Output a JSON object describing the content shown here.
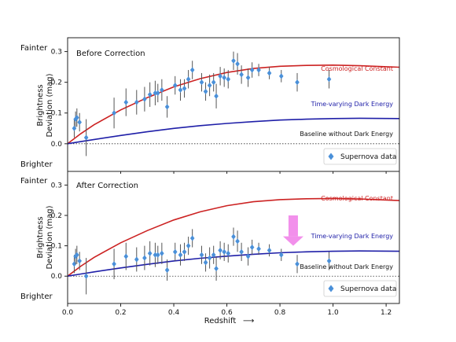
{
  "chart_data": {
    "type": "scatter",
    "xlabel": "Redshift",
    "xlabel_arrow": "⟶",
    "ylabel_line1": "Brightness",
    "ylabel_line2": "Deviation (mag)",
    "xlim": [
      0,
      1.25
    ],
    "ylim": [
      -0.09,
      0.345
    ],
    "xticks": [
      "0.0",
      "0.2",
      "0.4",
      "0.6",
      "0.8",
      "1.0",
      "1.2"
    ],
    "xtick_values": [
      0,
      0.2,
      0.4,
      0.6,
      0.8,
      1.0,
      1.2
    ],
    "yticks": [
      "0.0",
      "0.1",
      "0.2",
      "0.3"
    ],
    "ytick_values": [
      0,
      0.1,
      0.2,
      0.3
    ],
    "side_labels": {
      "top": "Fainter",
      "bottom": "Brighter"
    },
    "colors": {
      "cosmological": "#cc2222",
      "dark_energy": "#1f1fa8",
      "points": "#4a90d9",
      "errorbars": "#555555",
      "arrow": "#f07de8"
    },
    "curve_labels": {
      "cosmological": "Cosmological Constant",
      "dark_energy": "Time-varying Dark Energy",
      "baseline": "Baseline without Dark Energy"
    },
    "legend_label": "Supernova data",
    "panels": [
      {
        "title": "Before Correction",
        "cosmological_curve": {
          "x": [
            0,
            0.05,
            0.1,
            0.2,
            0.3,
            0.4,
            0.5,
            0.6,
            0.7,
            0.8,
            0.9,
            1.0,
            1.1,
            1.25
          ],
          "y": [
            0,
            0.033,
            0.062,
            0.11,
            0.15,
            0.185,
            0.212,
            0.232,
            0.245,
            0.252,
            0.255,
            0.256,
            0.254,
            0.249
          ]
        },
        "dark_energy_curve": {
          "x": [
            0,
            0.05,
            0.1,
            0.2,
            0.3,
            0.4,
            0.5,
            0.6,
            0.7,
            0.8,
            0.9,
            1.0,
            1.1,
            1.25
          ],
          "y": [
            0,
            0.007,
            0.014,
            0.027,
            0.039,
            0.05,
            0.059,
            0.066,
            0.072,
            0.077,
            0.08,
            0.082,
            0.083,
            0.082
          ]
        },
        "points": [
          {
            "x": 0.025,
            "y": 0.05,
            "err": 0.03
          },
          {
            "x": 0.03,
            "y": 0.08,
            "err": 0.025
          },
          {
            "x": 0.035,
            "y": 0.085,
            "err": 0.03
          },
          {
            "x": 0.045,
            "y": 0.07,
            "err": 0.03
          },
          {
            "x": 0.07,
            "y": 0.02,
            "err": 0.06
          },
          {
            "x": 0.175,
            "y": 0.1,
            "err": 0.05
          },
          {
            "x": 0.22,
            "y": 0.135,
            "err": 0.045
          },
          {
            "x": 0.26,
            "y": 0.135,
            "err": 0.04
          },
          {
            "x": 0.29,
            "y": 0.145,
            "err": 0.04
          },
          {
            "x": 0.31,
            "y": 0.16,
            "err": 0.04
          },
          {
            "x": 0.33,
            "y": 0.165,
            "err": 0.04
          },
          {
            "x": 0.34,
            "y": 0.165,
            "err": 0.03
          },
          {
            "x": 0.355,
            "y": 0.175,
            "err": 0.035
          },
          {
            "x": 0.375,
            "y": 0.12,
            "err": 0.035
          },
          {
            "x": 0.405,
            "y": 0.19,
            "err": 0.03
          },
          {
            "x": 0.425,
            "y": 0.175,
            "err": 0.035
          },
          {
            "x": 0.44,
            "y": 0.18,
            "err": 0.03
          },
          {
            "x": 0.455,
            "y": 0.21,
            "err": 0.03
          },
          {
            "x": 0.47,
            "y": 0.24,
            "err": 0.03
          },
          {
            "x": 0.505,
            "y": 0.2,
            "err": 0.03
          },
          {
            "x": 0.52,
            "y": 0.17,
            "err": 0.03
          },
          {
            "x": 0.535,
            "y": 0.19,
            "err": 0.035
          },
          {
            "x": 0.55,
            "y": 0.2,
            "err": 0.03
          },
          {
            "x": 0.56,
            "y": 0.155,
            "err": 0.04
          },
          {
            "x": 0.575,
            "y": 0.22,
            "err": 0.03
          },
          {
            "x": 0.59,
            "y": 0.215,
            "err": 0.03
          },
          {
            "x": 0.605,
            "y": 0.21,
            "err": 0.03
          },
          {
            "x": 0.625,
            "y": 0.27,
            "err": 0.03
          },
          {
            "x": 0.64,
            "y": 0.26,
            "err": 0.035
          },
          {
            "x": 0.655,
            "y": 0.225,
            "err": 0.03
          },
          {
            "x": 0.68,
            "y": 0.215,
            "err": 0.03
          },
          {
            "x": 0.695,
            "y": 0.24,
            "err": 0.025
          },
          {
            "x": 0.72,
            "y": 0.24,
            "err": 0.02
          },
          {
            "x": 0.76,
            "y": 0.23,
            "err": 0.02
          },
          {
            "x": 0.805,
            "y": 0.22,
            "err": 0.02
          },
          {
            "x": 0.865,
            "y": 0.2,
            "err": 0.03
          },
          {
            "x": 0.985,
            "y": 0.21,
            "err": 0.03
          }
        ]
      },
      {
        "title": "After Correction",
        "cosmological_curve": {
          "x": [
            0,
            0.05,
            0.1,
            0.2,
            0.3,
            0.4,
            0.5,
            0.6,
            0.7,
            0.8,
            0.9,
            1.0,
            1.1,
            1.25
          ],
          "y": [
            0,
            0.033,
            0.062,
            0.11,
            0.15,
            0.185,
            0.212,
            0.232,
            0.245,
            0.252,
            0.255,
            0.256,
            0.254,
            0.249
          ]
        },
        "dark_energy_curve": {
          "x": [
            0,
            0.05,
            0.1,
            0.2,
            0.3,
            0.4,
            0.5,
            0.6,
            0.7,
            0.8,
            0.9,
            1.0,
            1.1,
            1.25
          ],
          "y": [
            0,
            0.007,
            0.014,
            0.027,
            0.039,
            0.05,
            0.059,
            0.066,
            0.072,
            0.077,
            0.08,
            0.082,
            0.083,
            0.082
          ]
        },
        "points": [
          {
            "x": 0.025,
            "y": 0.04,
            "err": 0.03
          },
          {
            "x": 0.03,
            "y": 0.065,
            "err": 0.025
          },
          {
            "x": 0.035,
            "y": 0.07,
            "err": 0.03
          },
          {
            "x": 0.045,
            "y": 0.05,
            "err": 0.03
          },
          {
            "x": 0.07,
            "y": 0.0,
            "err": 0.06
          },
          {
            "x": 0.175,
            "y": 0.04,
            "err": 0.05
          },
          {
            "x": 0.22,
            "y": 0.065,
            "err": 0.045
          },
          {
            "x": 0.26,
            "y": 0.055,
            "err": 0.04
          },
          {
            "x": 0.29,
            "y": 0.06,
            "err": 0.04
          },
          {
            "x": 0.31,
            "y": 0.075,
            "err": 0.04
          },
          {
            "x": 0.33,
            "y": 0.07,
            "err": 0.04
          },
          {
            "x": 0.34,
            "y": 0.07,
            "err": 0.03
          },
          {
            "x": 0.355,
            "y": 0.075,
            "err": 0.035
          },
          {
            "x": 0.375,
            "y": 0.02,
            "err": 0.035
          },
          {
            "x": 0.405,
            "y": 0.08,
            "err": 0.03
          },
          {
            "x": 0.425,
            "y": 0.07,
            "err": 0.035
          },
          {
            "x": 0.44,
            "y": 0.08,
            "err": 0.03
          },
          {
            "x": 0.455,
            "y": 0.1,
            "err": 0.03
          },
          {
            "x": 0.47,
            "y": 0.125,
            "err": 0.03
          },
          {
            "x": 0.505,
            "y": 0.07,
            "err": 0.03
          },
          {
            "x": 0.52,
            "y": 0.045,
            "err": 0.03
          },
          {
            "x": 0.535,
            "y": 0.06,
            "err": 0.035
          },
          {
            "x": 0.55,
            "y": 0.07,
            "err": 0.03
          },
          {
            "x": 0.56,
            "y": 0.025,
            "err": 0.04
          },
          {
            "x": 0.575,
            "y": 0.085,
            "err": 0.03
          },
          {
            "x": 0.59,
            "y": 0.08,
            "err": 0.03
          },
          {
            "x": 0.605,
            "y": 0.075,
            "err": 0.03
          },
          {
            "x": 0.625,
            "y": 0.13,
            "err": 0.03
          },
          {
            "x": 0.64,
            "y": 0.115,
            "err": 0.035
          },
          {
            "x": 0.655,
            "y": 0.08,
            "err": 0.03
          },
          {
            "x": 0.68,
            "y": 0.065,
            "err": 0.03
          },
          {
            "x": 0.695,
            "y": 0.095,
            "err": 0.025
          },
          {
            "x": 0.72,
            "y": 0.09,
            "err": 0.02
          },
          {
            "x": 0.76,
            "y": 0.085,
            "err": 0.02
          },
          {
            "x": 0.805,
            "y": 0.07,
            "err": 0.02
          },
          {
            "x": 0.865,
            "y": 0.04,
            "err": 0.03
          },
          {
            "x": 0.985,
            "y": 0.05,
            "err": 0.03
          }
        ],
        "arrow_at": {
          "x": 0.85,
          "y_from": 0.2,
          "y_to": 0.1
        }
      }
    ]
  }
}
